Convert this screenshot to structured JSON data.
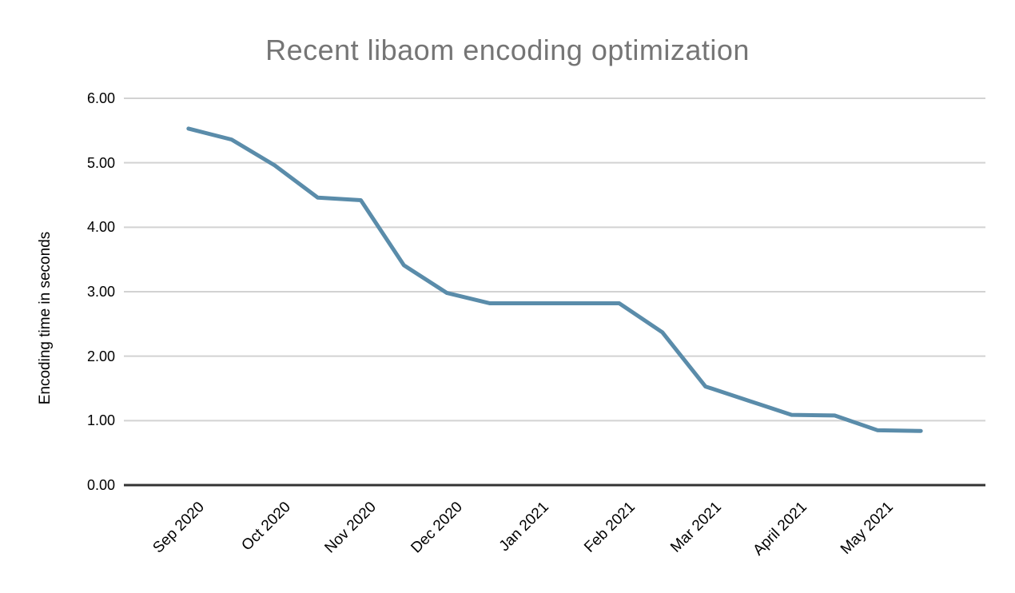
{
  "chart_data": {
    "type": "line",
    "title": "Recent libaom encoding optimization",
    "title_color": "#757575",
    "xlabel": "",
    "ylabel": "Encoding time in seconds",
    "ylim": [
      0,
      6
    ],
    "ytick_labels": [
      "0.00",
      "1.00",
      "2.00",
      "3.00",
      "4.00",
      "5.00",
      "6.00"
    ],
    "xtick_labels": [
      "Sep 2020",
      "Oct 2020",
      "Nov 2020",
      "Dec 2020",
      "Jan 2021",
      "Feb 2021",
      "Mar 2021",
      "April 2021",
      "May 2021"
    ],
    "points_per_labeled_month": 2,
    "grid": true,
    "legend": "none",
    "gridline_color": "#d2d2d2",
    "axis_color": "#333333",
    "series": [
      {
        "color": "#5a8caa",
        "x_month_index": [
          0,
          0.5,
          1,
          1.5,
          2,
          2.5,
          3,
          3.5,
          4,
          4.5,
          5,
          5.5,
          6,
          6.5,
          7,
          7.5,
          8,
          8.5
        ],
        "values": [
          5.53,
          5.36,
          4.96,
          4.46,
          4.42,
          3.41,
          2.98,
          2.82,
          2.82,
          2.82,
          2.82,
          2.37,
          1.53,
          1.31,
          1.09,
          1.08,
          0.85,
          0.84
        ]
      }
    ]
  }
}
